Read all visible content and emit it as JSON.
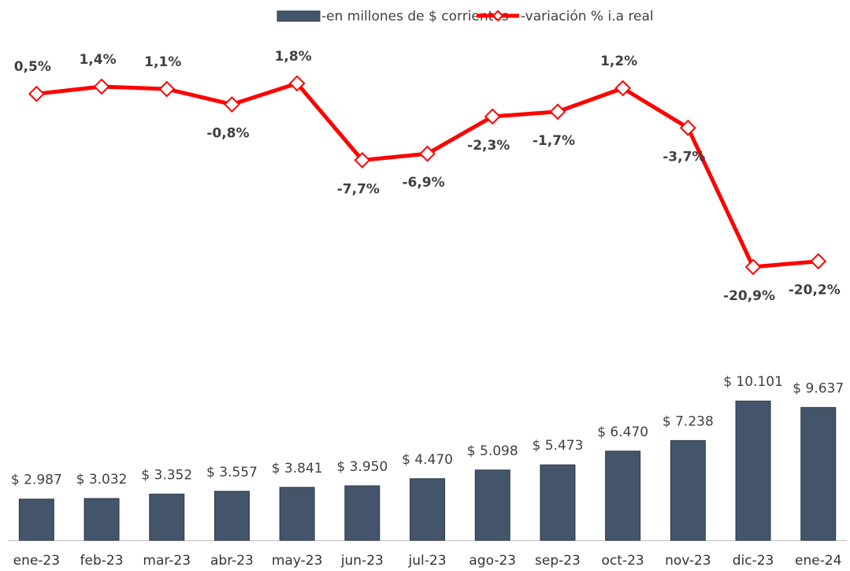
{
  "chart_data": {
    "type": "bar-line",
    "categories": [
      "ene-23",
      "feb-23",
      "mar-23",
      "abr-23",
      "may-23",
      "jun-23",
      "jul-23",
      "ago-23",
      "sep-23",
      "oct-23",
      "nov-23",
      "dic-23",
      "ene-24"
    ],
    "series": [
      {
        "name": "-en millones de $ corrientes",
        "type": "bar",
        "color": "#44546a",
        "values": [
          2987,
          3032,
          3352,
          3557,
          3841,
          3950,
          4470,
          5098,
          5473,
          6470,
          7238,
          10101,
          9637
        ],
        "value_labels": [
          "$ 2.987",
          "$ 3.032",
          "$ 3.352",
          "$ 3.557",
          "$ 3.841",
          "$ 3.950",
          "$ 4.470",
          "$ 5.098",
          "$ 5.473",
          "$ 6.470",
          "$ 7.238",
          "$ 10.101",
          "$ 9.637"
        ]
      },
      {
        "name": "-variación % i.a real",
        "type": "line",
        "axis": "y2",
        "color": "#ff0000",
        "values": [
          0.5,
          1.4,
          1.1,
          -0.8,
          1.8,
          -7.7,
          -6.9,
          -2.3,
          -1.7,
          1.2,
          -3.7,
          -20.9,
          -20.2
        ],
        "value_labels": [
          "0,5%",
          "1,4%",
          "1,1%",
          "-0,8%",
          "1,8%",
          "-7,7%",
          "-6,9%",
          "-2,3%",
          "-1,7%",
          "1,2%",
          "-3,7%",
          "-20,9%",
          "-20,2%"
        ]
      }
    ],
    "ylim": [
      0,
      12000
    ],
    "y2lim": [
      -25,
      5
    ],
    "legend": "top"
  }
}
